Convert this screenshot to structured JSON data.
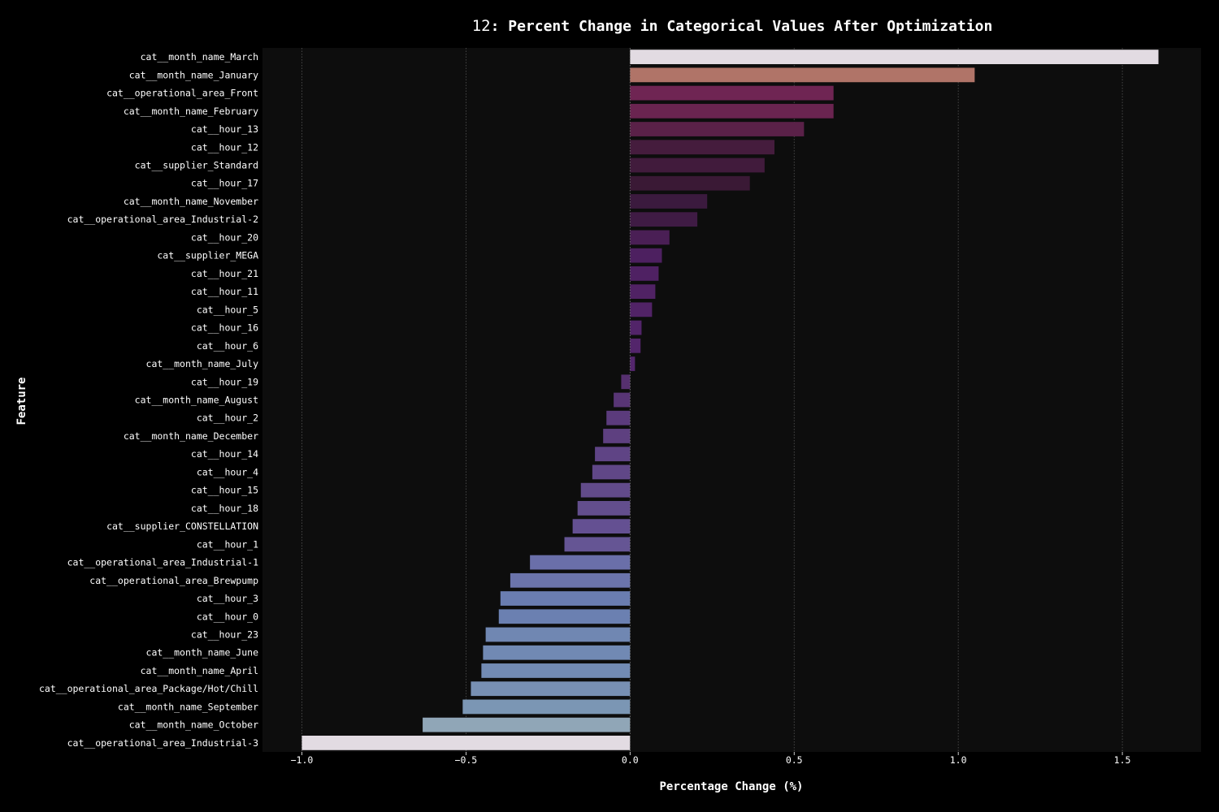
{
  "chart_data": {
    "type": "bar",
    "orientation": "horizontal",
    "title_prefix": "12",
    "title": ": Percent Change in Categorical Values After Optimization",
    "xlabel": "Percentage Change (%)",
    "ylabel": "Feature",
    "xlim": [
      -1.12,
      1.74
    ],
    "xticks": [
      -1.0,
      -0.5,
      0.0,
      0.5,
      1.0,
      1.5
    ],
    "xtick_labels": [
      "−1.0",
      "−0.5",
      "0.0",
      "0.5",
      "1.0",
      "1.5"
    ],
    "grid": "vertical-dotted",
    "colors": {
      "background": "#000000",
      "plot_background": "#0d0d0d",
      "text": "#ffffff",
      "grid": "#555555"
    },
    "categories": [
      "cat__month_name_March",
      "cat__month_name_January",
      "cat__operational_area_Front",
      "cat__month_name_February",
      "cat__hour_13",
      "cat__hour_12",
      "cat__supplier_Standard",
      "cat__hour_17",
      "cat__month_name_November",
      "cat__operational_area_Industrial-2",
      "cat__hour_20",
      "cat__supplier_MEGA",
      "cat__hour_21",
      "cat__hour_11",
      "cat__hour_5",
      "cat__hour_16",
      "cat__hour_6",
      "cat__month_name_July",
      "cat__hour_19",
      "cat__month_name_August",
      "cat__hour_2",
      "cat__month_name_December",
      "cat__hour_14",
      "cat__hour_4",
      "cat__hour_15",
      "cat__hour_18",
      "cat__supplier_CONSTELLATION",
      "cat__hour_1",
      "cat__operational_area_Industrial-1",
      "cat__operational_area_Brewpump",
      "cat__hour_3",
      "cat__hour_0",
      "cat__hour_23",
      "cat__month_name_June",
      "cat__month_name_April",
      "cat__operational_area_Package/Hot/Chill",
      "cat__month_name_September",
      "cat__month_name_October",
      "cat__operational_area_Industrial-3"
    ],
    "values": [
      1.61,
      1.05,
      0.62,
      0.62,
      0.53,
      0.44,
      0.41,
      0.365,
      0.235,
      0.205,
      0.12,
      0.097,
      0.087,
      0.077,
      0.067,
      0.035,
      0.032,
      0.015,
      -0.027,
      -0.05,
      -0.072,
      -0.082,
      -0.107,
      -0.115,
      -0.15,
      -0.16,
      -0.175,
      -0.2,
      -0.305,
      -0.365,
      -0.395,
      -0.4,
      -0.44,
      -0.448,
      -0.453,
      -0.485,
      -0.51,
      -0.632,
      -1.0
    ],
    "bar_colors": [
      "#e2dbe2",
      "#b07468",
      "#6f2553",
      "#6a2450",
      "#5a2148",
      "#451c3d",
      "#411b3c",
      "#3a1935",
      "#3b1a3e",
      "#3f1b44",
      "#4a1f55",
      "#4d2060",
      "#4f2163",
      "#502264",
      "#512366",
      "#522469",
      "#53256b",
      "#54266d",
      "#56306f",
      "#583575",
      "#5b3b7c",
      "#5e4080",
      "#5f4485",
      "#604787",
      "#624b8a",
      "#634e8d",
      "#645092",
      "#655594",
      "#6a6fa9",
      "#6b74ab",
      "#6a7db0",
      "#6b80b1",
      "#7087b2",
      "#7189b3",
      "#728bb4",
      "#7890b3",
      "#7b96b4",
      "#90a6b7",
      "#e2dbe2"
    ]
  }
}
